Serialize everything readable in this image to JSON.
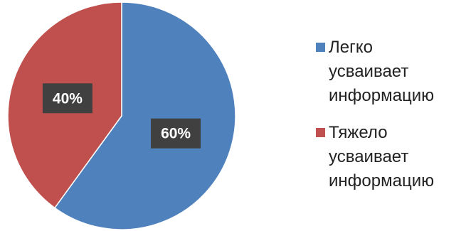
{
  "chart_data": {
    "type": "pie",
    "categories": [
      "Легко усваивает информацию",
      "Тяжело усваивает информацию"
    ],
    "values": [
      60,
      40
    ],
    "data_labels": [
      "60%",
      "40%"
    ],
    "colors": [
      "#4f81bd",
      "#c0504d"
    ],
    "label_bg": "#404040",
    "legend_placement": "right",
    "legend": [
      {
        "label": "Легко\nусваивает\nинформацию",
        "color": "#4f81bd"
      },
      {
        "label": "Тяжело\nусваивает\nинформацию",
        "color": "#c0504d"
      }
    ]
  }
}
